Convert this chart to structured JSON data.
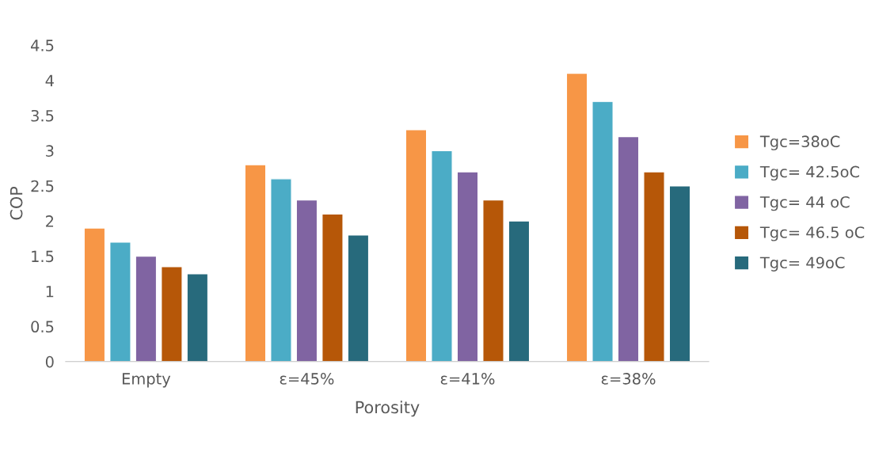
{
  "chart_data": {
    "type": "bar",
    "xlabel": "Porosity",
    "ylabel": "COP",
    "categories": [
      "Empty",
      "ε=45%",
      "ε=41%",
      "ε=38%"
    ],
    "series": [
      {
        "name": "Tgc=38oC",
        "color": "#f79646",
        "values": [
          1.9,
          2.8,
          3.3,
          4.1
        ]
      },
      {
        "name": "Tgc= 42.5oC",
        "color": "#4bacc6",
        "values": [
          1.7,
          2.6,
          3.0,
          3.7
        ]
      },
      {
        "name": "Tgc= 44 oC",
        "color": "#8064a2",
        "values": [
          1.5,
          2.3,
          2.7,
          3.2
        ]
      },
      {
        "name": "Tgc= 46.5 oC",
        "color": "#b65708",
        "values": [
          1.35,
          2.1,
          2.3,
          2.7
        ]
      },
      {
        "name": "Tgc= 49oC",
        "color": "#276a7c",
        "values": [
          1.25,
          1.8,
          2.0,
          2.5
        ]
      }
    ],
    "ylim": [
      0,
      4.5
    ],
    "yticks": [
      0,
      0.5,
      1,
      1.5,
      2,
      2.5,
      3,
      3.5,
      4,
      4.5
    ],
    "grid": false,
    "legend": "right"
  }
}
